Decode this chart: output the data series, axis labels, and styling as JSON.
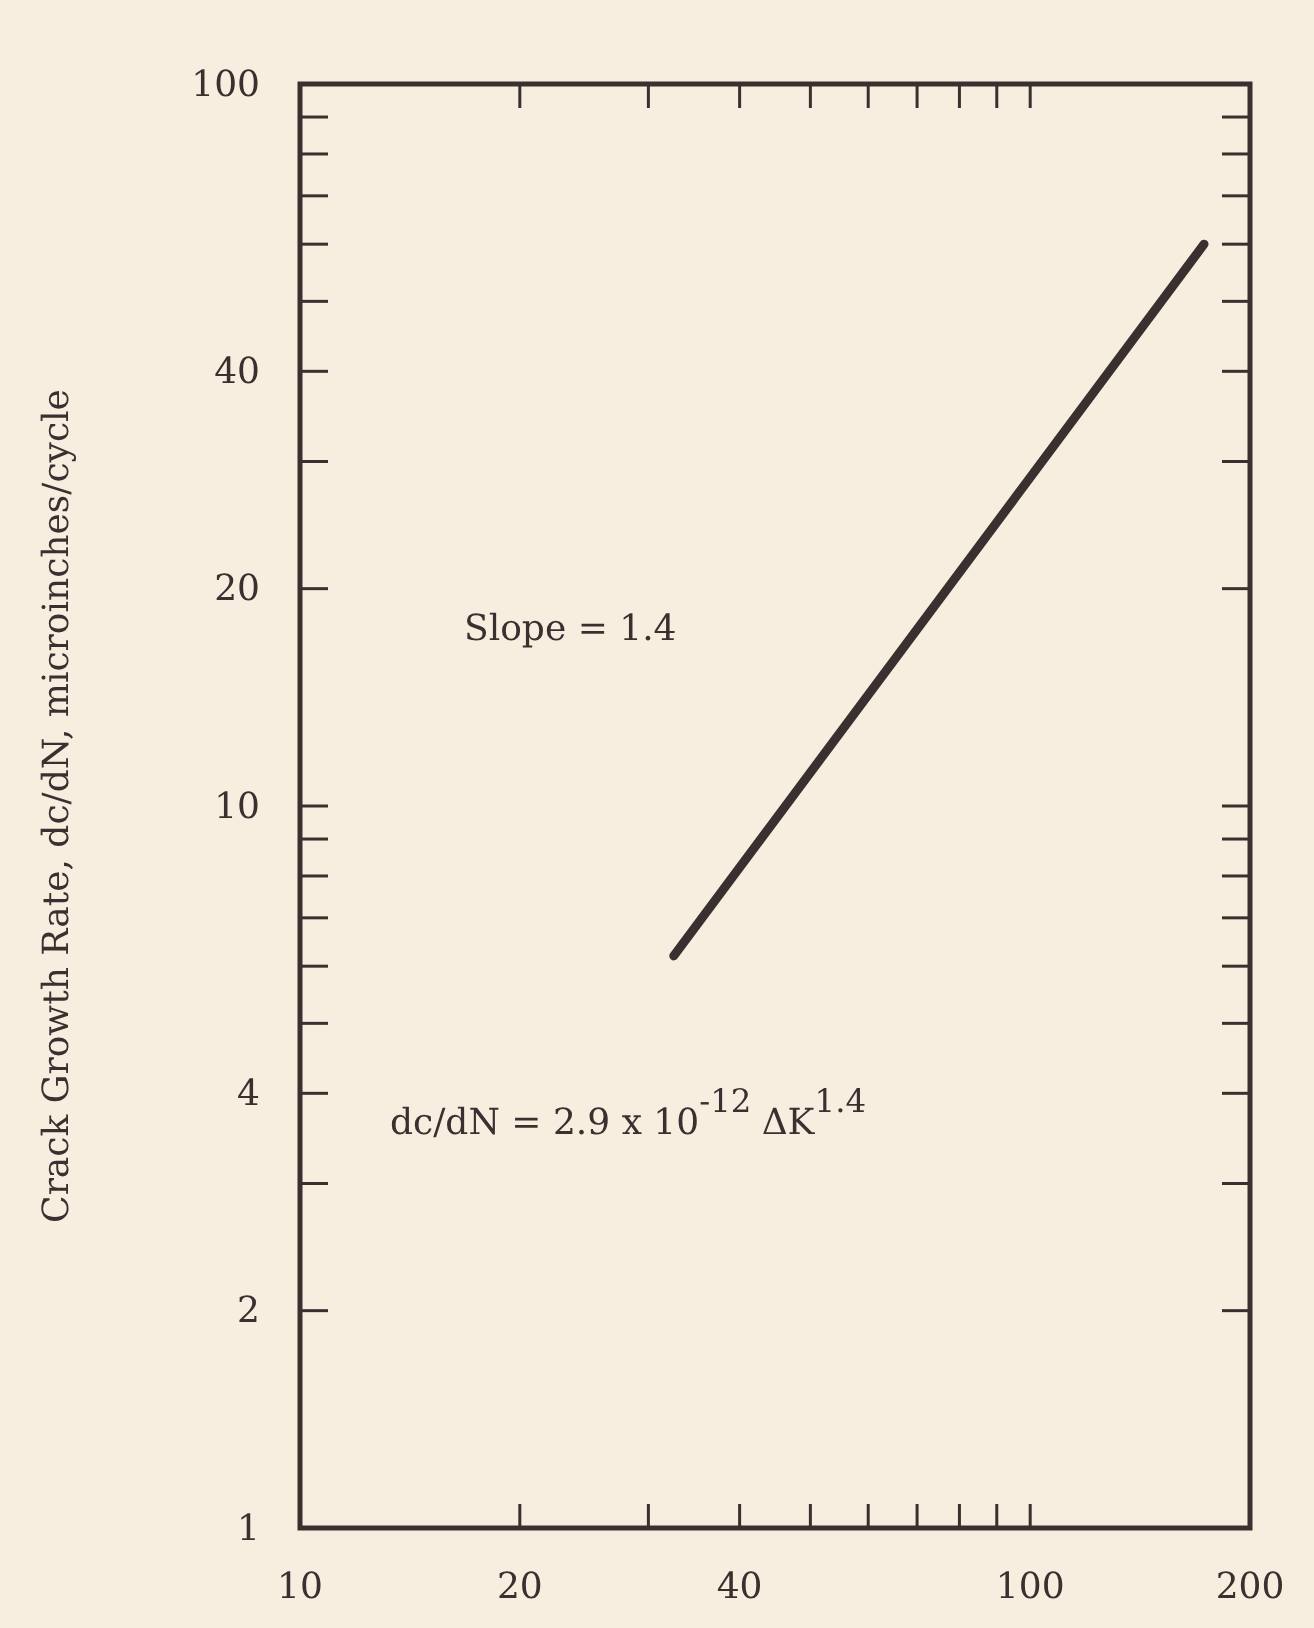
{
  "chart_data": {
    "type": "line",
    "ylabel": "Crack Growth Rate, dc/dN, microinches/cycle",
    "annotations": [
      "Slope = 1.4",
      "dc/dN = 2.9 x 10$^{-12}$ ΔK$^{1.4}$"
    ],
    "series": [
      {
        "color": "#3b3030",
        "x": [
          32.5,
          173
        ],
        "values": [
          6.2,
          60
        ]
      }
    ],
    "log": "xy",
    "xlim": [
      10,
      200
    ],
    "ylim": [
      1,
      100
    ],
    "xticks": [
      10,
      20,
      {
        "value": 30,
        "label": null
      },
      40,
      {
        "value": 50,
        "label": null
      },
      {
        "value": 60,
        "label": null
      },
      {
        "value": 70,
        "label": null
      },
      {
        "value": 80,
        "label": null
      },
      {
        "value": 90,
        "label": null
      },
      100,
      200
    ],
    "yticks": [
      1,
      2,
      {
        "value": 3,
        "label": null
      },
      4,
      {
        "value": 5,
        "label": null
      },
      {
        "value": 6,
        "label": null
      },
      {
        "value": 7,
        "label": null
      },
      {
        "value": 8,
        "label": null
      },
      {
        "value": 9,
        "label": null
      },
      10,
      20,
      {
        "value": 30,
        "label": null
      },
      40,
      {
        "value": 50,
        "label": null
      },
      {
        "value": 60,
        "label": null
      },
      {
        "value": 70,
        "label": null
      },
      {
        "value": 80,
        "label": null
      },
      {
        "value": 90,
        "label": null
      },
      100
    ],
    "marker": "none",
    "line_style": "solid",
    "grid": false
  }
}
